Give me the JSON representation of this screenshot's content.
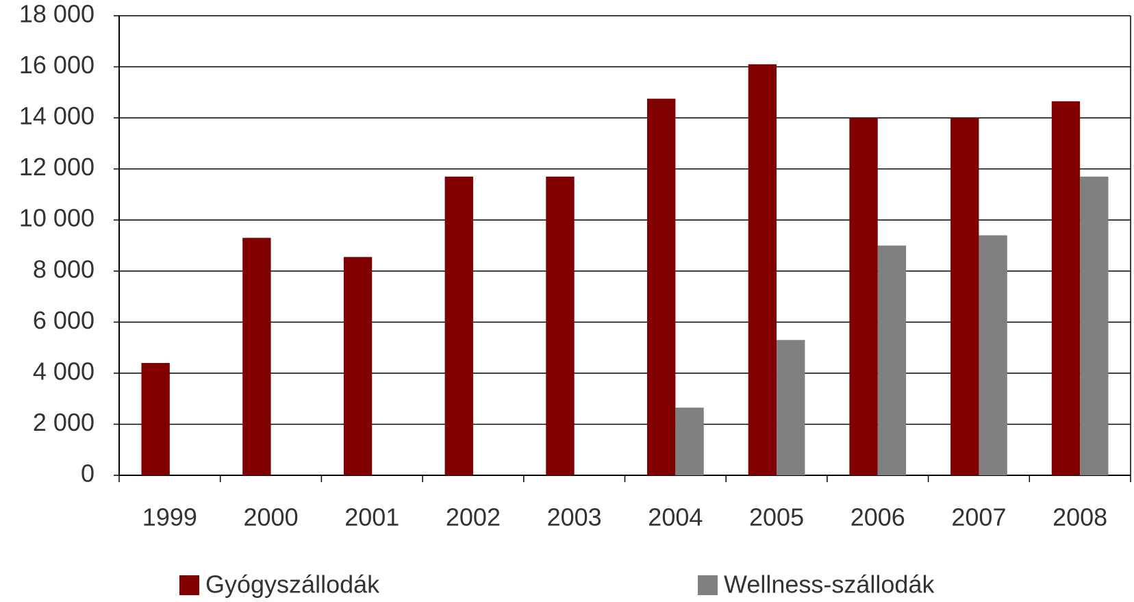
{
  "chart_data": {
    "type": "bar",
    "categories": [
      "1999",
      "2000",
      "2001",
      "2002",
      "2003",
      "2004",
      "2005",
      "2006",
      "2007",
      "2008"
    ],
    "series": [
      {
        "name": "Gyógyszállodák",
        "color": "#800000",
        "values": [
          4400,
          9300,
          8550,
          11700,
          11700,
          14750,
          16100,
          14000,
          14000,
          14650
        ]
      },
      {
        "name": "Wellness-szállodák",
        "color": "#808080",
        "values": [
          null,
          null,
          null,
          null,
          null,
          2650,
          5300,
          9000,
          9400,
          11700
        ]
      }
    ],
    "ylim": [
      0,
      18000
    ],
    "yticks": [
      0,
      {
        "value": 2000,
        "label": "2 000"
      },
      {
        "value": 4000,
        "label": "4 000"
      },
      {
        "value": 6000,
        "label": "6 000"
      },
      {
        "value": 8000,
        "label": "8 000"
      },
      {
        "value": 10000,
        "label": "10 000"
      },
      {
        "value": 12000,
        "label": "12 000"
      },
      {
        "value": 14000,
        "label": "14 000"
      },
      {
        "value": 16000,
        "label": "16 000"
      },
      {
        "value": 18000,
        "label": "18 000"
      }
    ],
    "grid": true,
    "legend": "bottom"
  }
}
